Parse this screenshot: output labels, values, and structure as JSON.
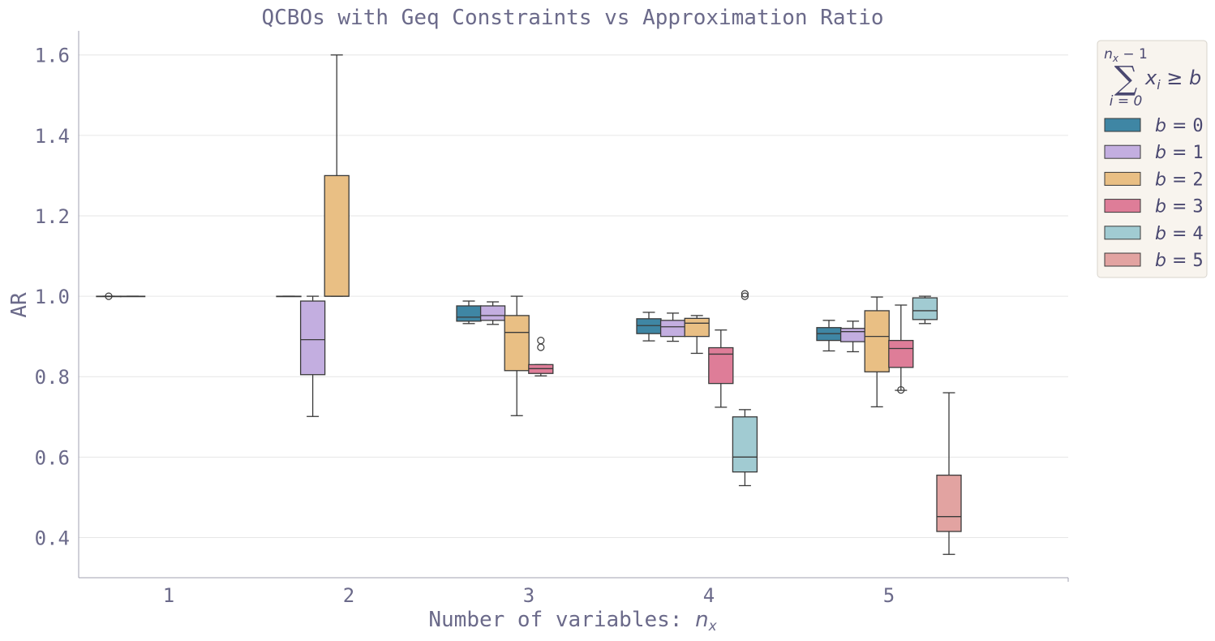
{
  "chart_data": {
    "type": "box",
    "title": "QCBOs with Geq Constraints vs Approximation Ratio",
    "xlabel_text": "Number of variables: ",
    "xlabel_math": "n",
    "xlabel_math_sub": "x",
    "ylabel": "AR",
    "categories": [
      "1",
      "2",
      "3",
      "4",
      "5"
    ],
    "yticks": [
      "0.4",
      "0.6",
      "0.8",
      "1.0",
      "1.2",
      "1.4",
      "1.6"
    ],
    "ylim": [
      0.3,
      1.66
    ],
    "grid": "horizontal",
    "legend": {
      "placement": "outside right",
      "title_sum_upper": "n",
      "title_sum_upper_sub": "x",
      "title_sum_upper_rest": " − 1",
      "title_sum_lower": "i = 0",
      "title_expr": "x",
      "title_expr_sub": "i",
      "title_expr_rest": " ≥ b"
    },
    "colors": {
      "text": "#6b6a8a",
      "legend_text": "#4a4870",
      "grid": "#e6e6e6",
      "axis": "#a0a0b0",
      "box_edge": "#3a3a3a",
      "legend_bg": "#f8f4ee",
      "legend_border": "#d8d4cc"
    },
    "series": [
      {
        "name": "b = 0",
        "b": "0",
        "color": "#3f86a4",
        "boxes": [
          {
            "cat": 0,
            "q1": 1.0,
            "med": 1.0,
            "q3": 1.0,
            "lo": 1.0,
            "hi": 1.0,
            "outliers": [
              1.0
            ]
          },
          {
            "cat": 1,
            "q1": 1.0,
            "med": 1.0,
            "q3": 1.0,
            "lo": 1.0,
            "hi": 1.0,
            "outliers": []
          },
          {
            "cat": 2,
            "q1": 0.938,
            "med": 0.948,
            "q3": 0.976,
            "lo": 0.932,
            "hi": 0.988,
            "outliers": []
          },
          {
            "cat": 3,
            "q1": 0.907,
            "med": 0.927,
            "q3": 0.944,
            "lo": 0.889,
            "hi": 0.96,
            "outliers": []
          },
          {
            "cat": 4,
            "q1": 0.89,
            "med": 0.907,
            "q3": 0.922,
            "lo": 0.864,
            "hi": 0.94,
            "outliers": []
          }
        ]
      },
      {
        "name": "b = 1",
        "b": "1",
        "color": "#c3aee0",
        "boxes": [
          {
            "cat": 0,
            "q1": 1.0,
            "med": 1.0,
            "q3": 1.0,
            "lo": 1.0,
            "hi": 1.0,
            "outliers": []
          },
          {
            "cat": 1,
            "q1": 0.805,
            "med": 0.892,
            "q3": 0.988,
            "lo": 0.701,
            "hi": 1.0,
            "outliers": []
          },
          {
            "cat": 2,
            "q1": 0.94,
            "med": 0.952,
            "q3": 0.976,
            "lo": 0.93,
            "hi": 0.986,
            "outliers": []
          },
          {
            "cat": 3,
            "q1": 0.9,
            "med": 0.924,
            "q3": 0.94,
            "lo": 0.888,
            "hi": 0.958,
            "outliers": []
          },
          {
            "cat": 4,
            "q1": 0.887,
            "med": 0.912,
            "q3": 0.92,
            "lo": 0.862,
            "hi": 0.938,
            "outliers": []
          }
        ]
      },
      {
        "name": "b = 2",
        "b": "2",
        "color": "#e9bf84",
        "boxes": [
          {
            "cat": 1,
            "q1": 1.0,
            "med": 1.0,
            "q3": 1.3,
            "lo": 1.0,
            "hi": 1.6,
            "outliers": []
          },
          {
            "cat": 2,
            "q1": 0.815,
            "med": 0.91,
            "q3": 0.952,
            "lo": 0.703,
            "hi": 1.0,
            "outliers": []
          },
          {
            "cat": 3,
            "q1": 0.9,
            "med": 0.933,
            "q3": 0.945,
            "lo": 0.858,
            "hi": 0.952,
            "outliers": []
          },
          {
            "cat": 4,
            "q1": 0.812,
            "med": 0.9,
            "q3": 0.964,
            "lo": 0.725,
            "hi": 0.998,
            "outliers": []
          }
        ]
      },
      {
        "name": "b = 3",
        "b": "3",
        "color": "#de7d98",
        "boxes": [
          {
            "cat": 2,
            "q1": 0.808,
            "med": 0.82,
            "q3": 0.83,
            "lo": 0.802,
            "hi": 0.83,
            "outliers": [
              0.873,
              0.89
            ]
          },
          {
            "cat": 3,
            "q1": 0.783,
            "med": 0.856,
            "q3": 0.872,
            "lo": 0.724,
            "hi": 0.916,
            "outliers": []
          },
          {
            "cat": 4,
            "q1": 0.823,
            "med": 0.87,
            "q3": 0.89,
            "lo": 0.766,
            "hi": 0.978,
            "outliers": [
              0.767
            ]
          }
        ]
      },
      {
        "name": "b = 4",
        "b": "4",
        "color": "#a1cbd2",
        "boxes": [
          {
            "cat": 3,
            "q1": 0.563,
            "med": 0.6,
            "q3": 0.7,
            "lo": 0.529,
            "hi": 0.718,
            "outliers": [
              1.0,
              1.006
            ]
          },
          {
            "cat": 4,
            "q1": 0.942,
            "med": 0.964,
            "q3": 0.996,
            "lo": 0.932,
            "hi": 1.0,
            "outliers": []
          }
        ]
      },
      {
        "name": "b = 5",
        "b": "5",
        "color": "#e2a3a1",
        "boxes": [
          {
            "cat": 4,
            "q1": 0.415,
            "med": 0.452,
            "q3": 0.555,
            "lo": 0.358,
            "hi": 0.76,
            "outliers": []
          }
        ]
      }
    ]
  }
}
